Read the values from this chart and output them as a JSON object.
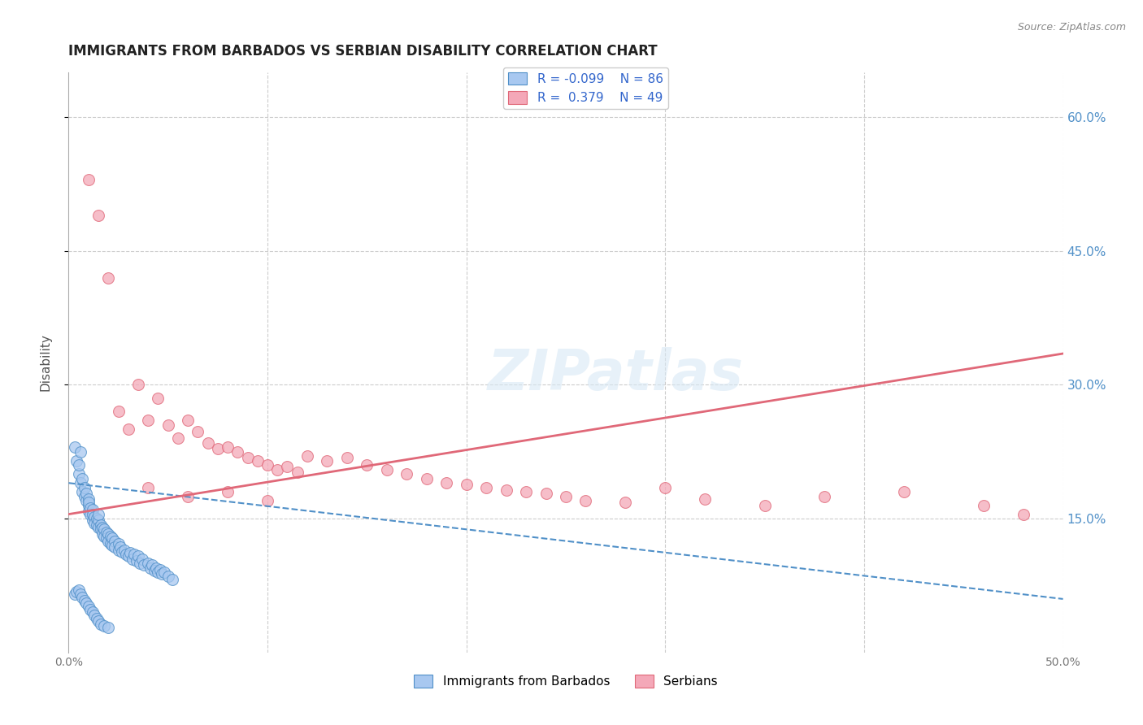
{
  "title": "IMMIGRANTS FROM BARBADOS VS SERBIAN DISABILITY CORRELATION CHART",
  "source": "Source: ZipAtlas.com",
  "ylabel": "Disability",
  "xlim": [
    0.0,
    0.5
  ],
  "ylim": [
    0.0,
    0.65
  ],
  "y_ticks_right": [
    0.15,
    0.3,
    0.45,
    0.6
  ],
  "y_tick_labels_right": [
    "15.0%",
    "30.0%",
    "45.0%",
    "60.0%"
  ],
  "x_ticks": [
    0.0,
    0.1,
    0.2,
    0.3,
    0.4,
    0.5
  ],
  "x_tick_labels": [
    "0.0%",
    "",
    "",
    "",
    "",
    "50.0%"
  ],
  "grid_color": "#cccccc",
  "background_color": "#ffffff",
  "legend_R1": "-0.099",
  "legend_N1": "86",
  "legend_R2": "0.379",
  "legend_N2": "49",
  "blue_color": "#a8c8f0",
  "pink_color": "#f4a8b8",
  "blue_line_color": "#5090c8",
  "pink_line_color": "#e06878",
  "watermark": "ZIPatlas",
  "blue_points_x": [
    0.003,
    0.004,
    0.005,
    0.005,
    0.006,
    0.006,
    0.007,
    0.007,
    0.008,
    0.008,
    0.009,
    0.009,
    0.01,
    0.01,
    0.01,
    0.01,
    0.011,
    0.011,
    0.012,
    0.012,
    0.012,
    0.013,
    0.013,
    0.014,
    0.014,
    0.015,
    0.015,
    0.015,
    0.016,
    0.016,
    0.017,
    0.017,
    0.018,
    0.018,
    0.019,
    0.019,
    0.02,
    0.02,
    0.021,
    0.021,
    0.022,
    0.022,
    0.023,
    0.023,
    0.025,
    0.025,
    0.026,
    0.027,
    0.028,
    0.029,
    0.03,
    0.031,
    0.032,
    0.033,
    0.034,
    0.035,
    0.036,
    0.037,
    0.038,
    0.04,
    0.041,
    0.042,
    0.043,
    0.044,
    0.045,
    0.046,
    0.047,
    0.048,
    0.05,
    0.052,
    0.003,
    0.004,
    0.005,
    0.006,
    0.007,
    0.008,
    0.009,
    0.01,
    0.011,
    0.012,
    0.013,
    0.014,
    0.015,
    0.016,
    0.018,
    0.02
  ],
  "blue_points_y": [
    0.23,
    0.215,
    0.2,
    0.21,
    0.225,
    0.19,
    0.18,
    0.195,
    0.175,
    0.185,
    0.17,
    0.178,
    0.165,
    0.172,
    0.158,
    0.168,
    0.162,
    0.155,
    0.16,
    0.148,
    0.155,
    0.152,
    0.145,
    0.15,
    0.143,
    0.148,
    0.14,
    0.155,
    0.143,
    0.138,
    0.14,
    0.133,
    0.138,
    0.13,
    0.135,
    0.128,
    0.133,
    0.125,
    0.13,
    0.122,
    0.128,
    0.12,
    0.125,
    0.118,
    0.122,
    0.115,
    0.118,
    0.113,
    0.115,
    0.11,
    0.108,
    0.112,
    0.105,
    0.11,
    0.103,
    0.108,
    0.1,
    0.105,
    0.098,
    0.1,
    0.095,
    0.098,
    0.092,
    0.095,
    0.09,
    0.093,
    0.088,
    0.09,
    0.085,
    0.082,
    0.065,
    0.068,
    0.07,
    0.065,
    0.062,
    0.058,
    0.055,
    0.052,
    0.048,
    0.045,
    0.042,
    0.038,
    0.035,
    0.032,
    0.03,
    0.028
  ],
  "pink_points_x": [
    0.01,
    0.015,
    0.02,
    0.025,
    0.03,
    0.035,
    0.04,
    0.045,
    0.05,
    0.055,
    0.06,
    0.065,
    0.07,
    0.075,
    0.08,
    0.085,
    0.09,
    0.095,
    0.1,
    0.105,
    0.11,
    0.115,
    0.12,
    0.13,
    0.14,
    0.15,
    0.16,
    0.17,
    0.18,
    0.19,
    0.2,
    0.21,
    0.22,
    0.23,
    0.24,
    0.25,
    0.26,
    0.28,
    0.3,
    0.32,
    0.35,
    0.38,
    0.42,
    0.46,
    0.48,
    0.04,
    0.06,
    0.08,
    0.1
  ],
  "pink_points_y": [
    0.53,
    0.49,
    0.42,
    0.27,
    0.25,
    0.3,
    0.26,
    0.285,
    0.255,
    0.24,
    0.26,
    0.248,
    0.235,
    0.228,
    0.23,
    0.225,
    0.218,
    0.215,
    0.21,
    0.205,
    0.208,
    0.202,
    0.22,
    0.215,
    0.218,
    0.21,
    0.205,
    0.2,
    0.195,
    0.19,
    0.188,
    0.185,
    0.182,
    0.18,
    0.178,
    0.175,
    0.17,
    0.168,
    0.185,
    0.172,
    0.165,
    0.175,
    0.18,
    0.165,
    0.155,
    0.185,
    0.175,
    0.18,
    0.17
  ],
  "blue_trend_x": [
    0.0,
    0.5
  ],
  "blue_trend_y": [
    0.19,
    0.06
  ],
  "pink_trend_x": [
    0.0,
    0.5
  ],
  "pink_trend_y": [
    0.155,
    0.335
  ]
}
